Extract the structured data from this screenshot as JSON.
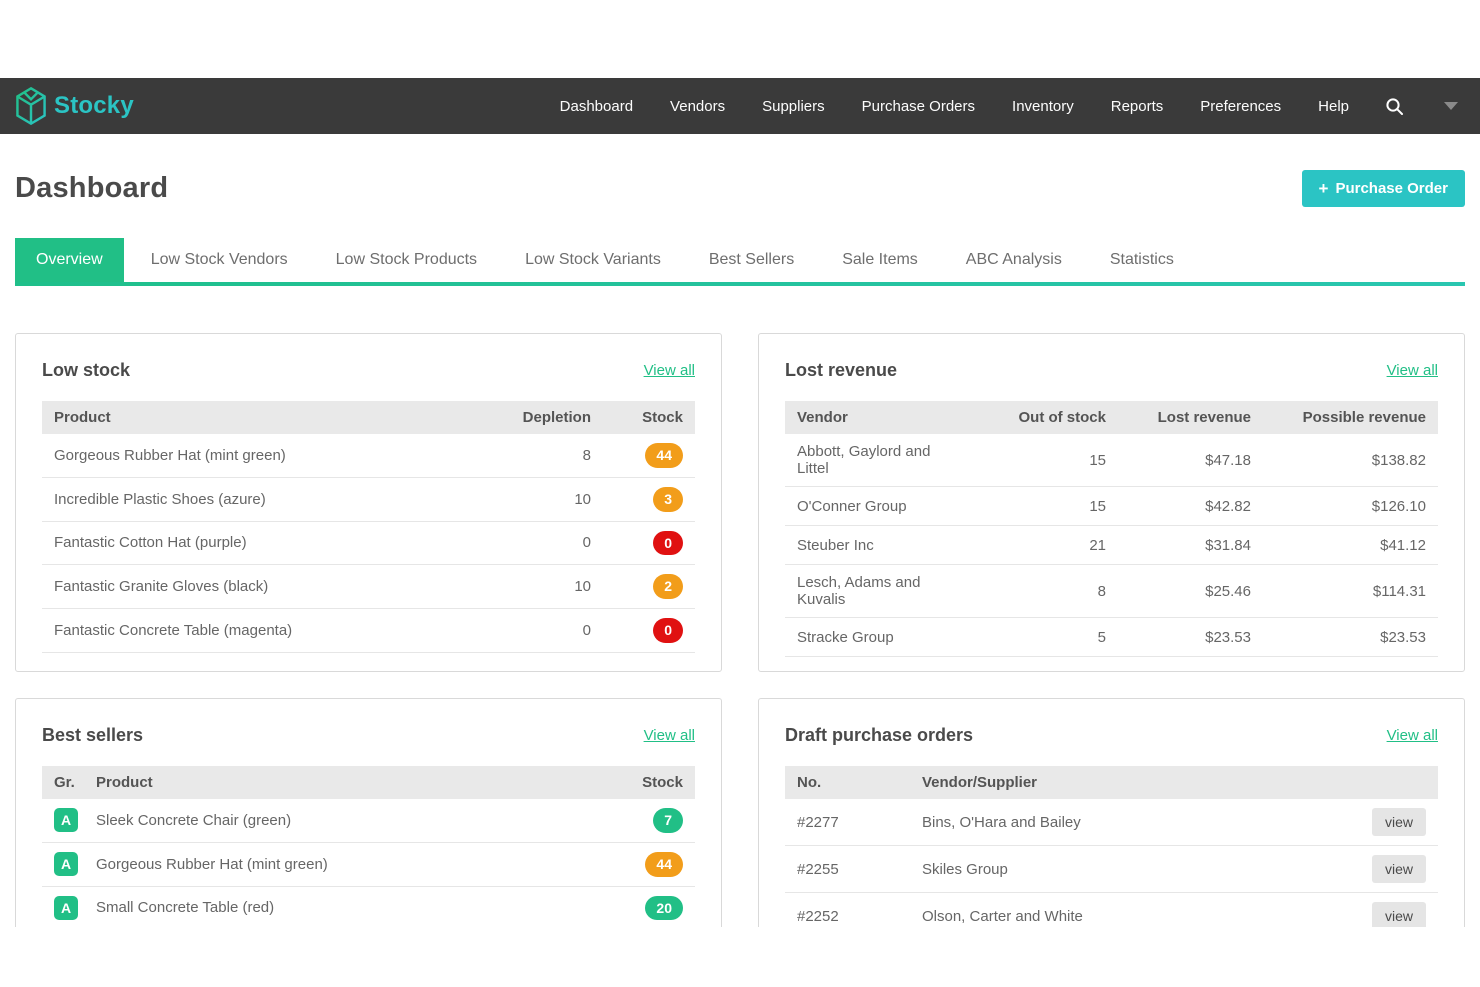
{
  "nav": {
    "brand": "Stocky",
    "items": [
      "Dashboard",
      "Vendors",
      "Suppliers",
      "Purchase Orders",
      "Inventory",
      "Reports",
      "Preferences",
      "Help"
    ]
  },
  "header": {
    "title": "Dashboard",
    "purchase_order_plus": "+",
    "purchase_order_label": "Purchase Order"
  },
  "tabs": [
    "Overview",
    "Low Stock Vendors",
    "Low Stock Products",
    "Low Stock Variants",
    "Best Sellers",
    "Sale Items",
    "ABC Analysis",
    "Statistics"
  ],
  "active_tab": "Overview",
  "cards": {
    "low_stock": {
      "title": "Low stock",
      "view_all": "View all",
      "columns": [
        "Product",
        "Depletion",
        "Stock"
      ],
      "rows": [
        {
          "product": "Gorgeous Rubber Hat (mint green)",
          "depletion": "8",
          "stock": "44",
          "stock_color": "orange"
        },
        {
          "product": "Incredible Plastic Shoes (azure)",
          "depletion": "10",
          "stock": "3",
          "stock_color": "orange"
        },
        {
          "product": "Fantastic Cotton Hat (purple)",
          "depletion": "0",
          "stock": "0",
          "stock_color": "red"
        },
        {
          "product": "Fantastic Granite Gloves (black)",
          "depletion": "10",
          "stock": "2",
          "stock_color": "orange"
        },
        {
          "product": "Fantastic Concrete Table (magenta)",
          "depletion": "0",
          "stock": "0",
          "stock_color": "red"
        }
      ]
    },
    "lost_revenue": {
      "title": "Lost revenue",
      "view_all": "View all",
      "columns": [
        "Vendor",
        "Out of stock",
        "Lost revenue",
        "Possible revenue"
      ],
      "rows": [
        {
          "vendor": "Abbott, Gaylord and Littel",
          "out_of_stock": "15",
          "lost_revenue": "$47.18",
          "possible_revenue": "$138.82"
        },
        {
          "vendor": "O'Conner Group",
          "out_of_stock": "15",
          "lost_revenue": "$42.82",
          "possible_revenue": "$126.10"
        },
        {
          "vendor": "Steuber Inc",
          "out_of_stock": "21",
          "lost_revenue": "$31.84",
          "possible_revenue": "$41.12"
        },
        {
          "vendor": "Lesch, Adams and Kuvalis",
          "out_of_stock": "8",
          "lost_revenue": "$25.46",
          "possible_revenue": "$114.31"
        },
        {
          "vendor": "Stracke Group",
          "out_of_stock": "5",
          "lost_revenue": "$23.53",
          "possible_revenue": "$23.53"
        }
      ]
    },
    "best_sellers": {
      "title": "Best sellers",
      "view_all": "View all",
      "columns": [
        "Gr.",
        "Product",
        "Stock"
      ],
      "rows": [
        {
          "grade": "A",
          "product": "Sleek Concrete Chair (green)",
          "stock": "7",
          "stock_color": "green"
        },
        {
          "grade": "A",
          "product": "Gorgeous Rubber Hat (mint green)",
          "stock": "44",
          "stock_color": "orange"
        },
        {
          "grade": "A",
          "product": "Small Concrete Table (red)",
          "stock": "20",
          "stock_color": "green"
        }
      ]
    },
    "draft_purchase_orders": {
      "title": "Draft purchase orders",
      "view_all": "View all",
      "columns": [
        "No.",
        "Vendor/Supplier",
        ""
      ],
      "view_label": "view",
      "rows": [
        {
          "number": "#2277",
          "vendor": "Bins, O'Hara and Bailey"
        },
        {
          "number": "#2255",
          "vendor": "Skiles Group"
        },
        {
          "number": "#2252",
          "vendor": "Olson, Carter and White"
        }
      ]
    }
  },
  "colors": {
    "accent_green": "#21bf86",
    "accent_teal": "#2bc4c4",
    "badge_orange": "#f29d1a",
    "badge_red": "#e01111",
    "nav_background": "#3a3a3a"
  }
}
